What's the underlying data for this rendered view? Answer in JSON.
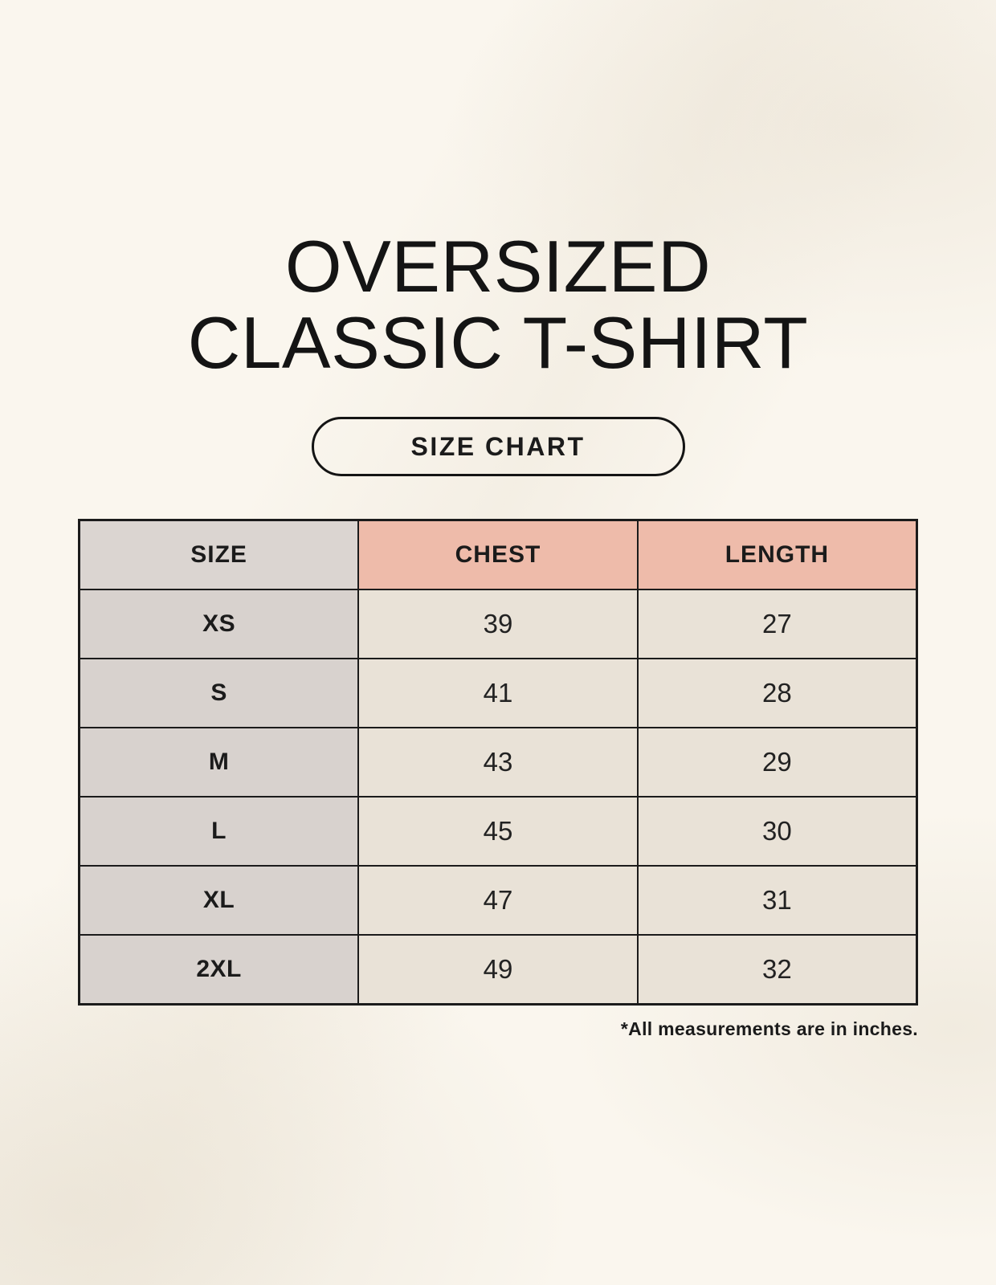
{
  "page": {
    "title_line1": "OVERSIZED",
    "title_line2": "CLASSIC T-SHIRT",
    "size_chart_badge": "SIZE CHART",
    "footnote": "*All measurements are in inches."
  },
  "table": {
    "headers": [
      "SIZE",
      "CHEST",
      "LENGTH"
    ],
    "rows": [
      {
        "size": "XS",
        "chest": "39",
        "length": "27"
      },
      {
        "size": "S",
        "chest": "41",
        "length": "28"
      },
      {
        "size": "M",
        "chest": "43",
        "length": "29"
      },
      {
        "size": "L",
        "chest": "45",
        "length": "30"
      },
      {
        "size": "XL",
        "chest": "47",
        "length": "31"
      },
      {
        "size": "2XL",
        "chest": "49",
        "length": "32"
      }
    ]
  },
  "chart_data": {
    "type": "table",
    "title": "OVERSIZED CLASSIC T-SHIRT — SIZE CHART",
    "columns": [
      "SIZE",
      "CHEST",
      "LENGTH"
    ],
    "rows": [
      [
        "XS",
        39,
        27
      ],
      [
        "S",
        41,
        28
      ],
      [
        "M",
        43,
        29
      ],
      [
        "L",
        45,
        30
      ],
      [
        "XL",
        47,
        31
      ],
      [
        "2XL",
        49,
        32
      ]
    ],
    "units": "inches"
  },
  "colors": {
    "page_background": "#faf6ee",
    "accent_header": "#eebbaa",
    "size_header_bg": "#dbd5d1",
    "size_column_bg": "#d8d2ce",
    "data_cell_bg": "#e9e2d7",
    "border_and_text": "#1b1b1b"
  }
}
